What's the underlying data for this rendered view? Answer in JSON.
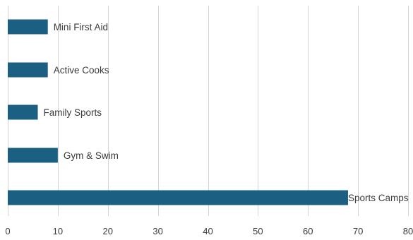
{
  "chart_data": {
    "type": "bar",
    "orientation": "horizontal",
    "categories": [
      "Sports Camps",
      "Gym & Swim",
      "Family Sports",
      "Active Cooks",
      "Mini First Aid"
    ],
    "values": [
      68,
      10,
      6,
      8,
      8
    ],
    "xlim": [
      0,
      80
    ],
    "x_ticks": [
      0,
      10,
      20,
      30,
      40,
      50,
      60,
      70,
      80
    ],
    "grid": "vertical",
    "bar_color": "#1b5f83",
    "data_labels": "category-name-at-bar-end",
    "title": "",
    "xlabel": "",
    "ylabel": ""
  }
}
